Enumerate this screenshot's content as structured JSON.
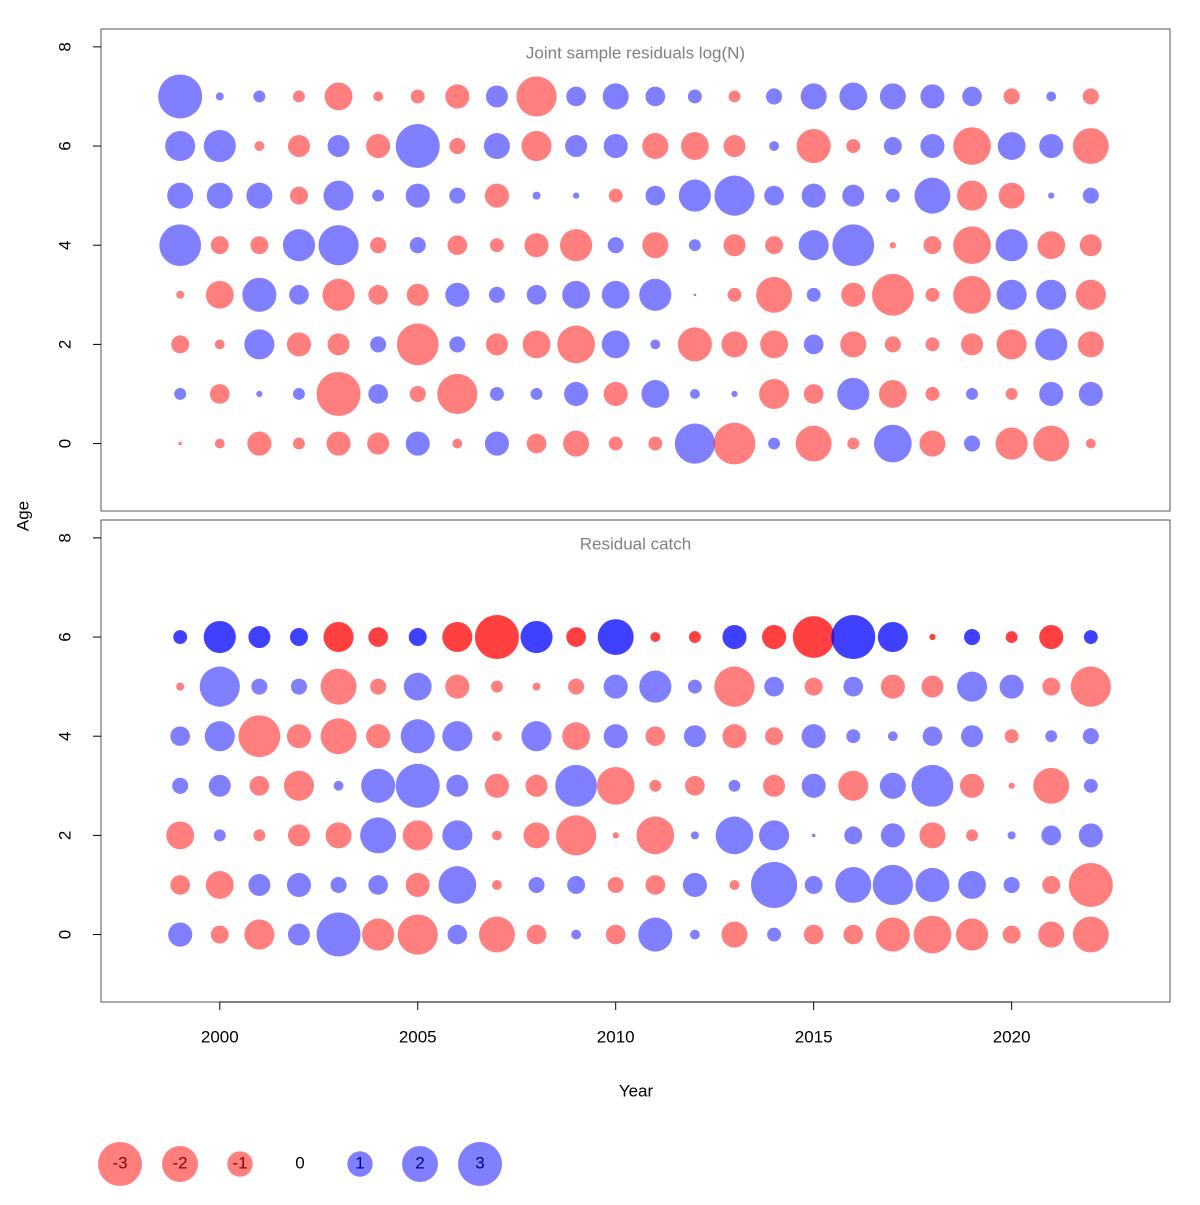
{
  "chart_data": {
    "type": "bubble",
    "xlabel": "Year",
    "ylabel": "Age",
    "x": [
      1999,
      2000,
      2001,
      2002,
      2003,
      2004,
      2005,
      2006,
      2007,
      2008,
      2009,
      2010,
      2011,
      2012,
      2013,
      2014,
      2015,
      2016,
      2017,
      2018,
      2019,
      2020,
      2021,
      2022
    ],
    "xlim": [
      1997,
      2024
    ],
    "xticks": [
      2000,
      2005,
      2010,
      2015,
      2020
    ],
    "ylim": [
      -1.36,
      8.36
    ],
    "yticks": [
      0,
      2,
      4,
      6,
      8
    ],
    "ages": [
      0,
      1,
      2,
      3,
      4,
      5,
      6,
      7
    ],
    "pos_color": "#0000ff",
    "neg_color": "#ff0000",
    "opacity": 0.5,
    "legend_values": [
      -3,
      -2,
      -1,
      0,
      1,
      2,
      3
    ],
    "panels": [
      {
        "title": "Joint sample residuals log(N)",
        "values": [
          [
            -0.02,
            -0.15,
            -0.9,
            -0.22,
            -0.9,
            -0.75,
            0.9,
            -0.15,
            0.9,
            -0.6,
            -1.05,
            -0.3,
            -0.3,
            2.5,
            -2.7,
            0.22,
            -2.0,
            -0.22,
            2.2,
            -1.05,
            0.4,
            -1.6,
            -2.0,
            -0.15
          ],
          [
            0.22,
            -0.6,
            0.06,
            0.22,
            -3.0,
            0.6,
            -0.4,
            -2.5,
            0.3,
            0.22,
            0.9,
            -0.9,
            1.2,
            0.15,
            0.06,
            -1.4,
            -0.6,
            1.6,
            -1.2,
            -0.3,
            0.22,
            -0.22,
            0.9,
            0.9
          ],
          [
            -0.5,
            -0.15,
            1.4,
            -0.9,
            -0.75,
            0.4,
            -2.7,
            0.4,
            -0.75,
            -1.2,
            -2.2,
            1.2,
            0.15,
            -1.8,
            -1.05,
            -1.2,
            0.6,
            -1.05,
            -0.4,
            -0.3,
            -0.75,
            -1.4,
            1.6,
            -1.05
          ],
          [
            -0.1,
            -1.2,
            1.8,
            0.6,
            -1.6,
            -0.6,
            -0.75,
            0.9,
            0.4,
            0.6,
            1.2,
            1.2,
            1.6,
            0.01,
            -0.3,
            -2.0,
            0.3,
            -0.9,
            -2.7,
            -0.3,
            -2.2,
            1.4,
            1.4,
            -1.4
          ],
          [
            2.7,
            -0.5,
            -0.5,
            1.6,
            2.5,
            -0.4,
            0.4,
            -0.6,
            -0.3,
            -0.9,
            -1.6,
            0.4,
            -1.05,
            0.22,
            -0.75,
            -0.5,
            1.4,
            2.7,
            -0.06,
            -0.5,
            -2.2,
            1.6,
            -1.2,
            -0.75
          ],
          [
            1.05,
            1.05,
            1.05,
            -0.5,
            1.4,
            0.22,
            0.9,
            0.4,
            -0.9,
            0.1,
            0.06,
            -0.3,
            0.6,
            1.6,
            2.5,
            0.6,
            0.9,
            0.75,
            0.3,
            2.0,
            -1.4,
            -1.05,
            0.06,
            0.4
          ],
          [
            1.4,
            1.6,
            -0.15,
            -0.75,
            0.75,
            -0.9,
            3.0,
            -0.4,
            1.05,
            -1.4,
            0.75,
            0.9,
            -1.05,
            -1.2,
            -0.75,
            0.15,
            -1.8,
            -0.3,
            0.5,
            0.9,
            -2.2,
            1.2,
            0.9,
            -2.0
          ],
          [
            3.0,
            0.1,
            0.22,
            -0.22,
            -1.2,
            -0.15,
            -0.3,
            -0.9,
            0.75,
            -2.5,
            0.6,
            1.05,
            0.6,
            0.3,
            -0.22,
            0.4,
            1.05,
            1.2,
            1.05,
            0.9,
            0.6,
            -0.4,
            0.15,
            -0.4
          ]
        ]
      },
      {
        "title": "Residual catch",
        "highlight_age": 6,
        "highlight_opacity": 0.75,
        "values": [
          [
            0.9,
            -0.5,
            -1.4,
            0.75,
            3.0,
            -1.6,
            -2.5,
            0.6,
            -2.0,
            -0.6,
            0.15,
            -0.6,
            1.8,
            0.15,
            -1.05,
            0.3,
            -0.6,
            -0.6,
            -1.8,
            -2.2,
            -1.6,
            -0.5,
            -1.05,
            -2.0
          ],
          [
            -0.6,
            -1.2,
            0.75,
            0.9,
            0.4,
            0.6,
            -0.9,
            2.2,
            -0.15,
            0.4,
            0.5,
            -0.4,
            -0.6,
            0.9,
            -0.15,
            3.3,
            0.5,
            2.0,
            2.5,
            1.8,
            1.2,
            0.4,
            -0.5,
            -3.0
          ],
          [
            -1.2,
            0.22,
            -0.22,
            -0.75,
            -1.05,
            2.0,
            -1.4,
            1.4,
            -0.15,
            -1.05,
            -2.5,
            -0.06,
            -2.2,
            0.1,
            2.2,
            1.4,
            0.02,
            0.5,
            0.9,
            -1.05,
            -0.22,
            0.1,
            0.6,
            0.9
          ],
          [
            0.4,
            0.75,
            -0.6,
            -1.4,
            0.15,
            1.8,
            3.0,
            0.75,
            -0.9,
            -0.75,
            2.7,
            -2.2,
            -0.22,
            -0.6,
            0.22,
            -0.75,
            0.9,
            -1.4,
            1.05,
            2.7,
            -0.9,
            -0.06,
            -2.0,
            0.3
          ],
          [
            0.6,
            1.4,
            -2.7,
            -0.9,
            -2.0,
            -0.9,
            1.8,
            1.4,
            -0.15,
            1.4,
            -1.2,
            0.9,
            -0.6,
            0.75,
            -0.9,
            -0.5,
            0.9,
            0.3,
            0.15,
            0.6,
            0.75,
            -0.3,
            0.22,
            0.4
          ],
          [
            -0.1,
            2.5,
            0.4,
            0.4,
            -2.0,
            -0.4,
            1.2,
            -0.9,
            -0.22,
            -0.1,
            -0.4,
            0.9,
            1.6,
            0.3,
            -2.5,
            0.6,
            -0.5,
            0.6,
            -0.9,
            -0.75,
            1.4,
            0.9,
            -0.5,
            -2.5
          ],
          [
            0.3,
            1.6,
            0.75,
            0.5,
            -1.4,
            -0.6,
            0.5,
            -1.4,
            -3.0,
            1.6,
            -0.6,
            2.0,
            -0.15,
            -0.22,
            0.9,
            -0.9,
            -2.7,
            3.0,
            1.4,
            -0.06,
            0.4,
            -0.22,
            -0.9,
            0.3
          ]
        ]
      }
    ]
  }
}
